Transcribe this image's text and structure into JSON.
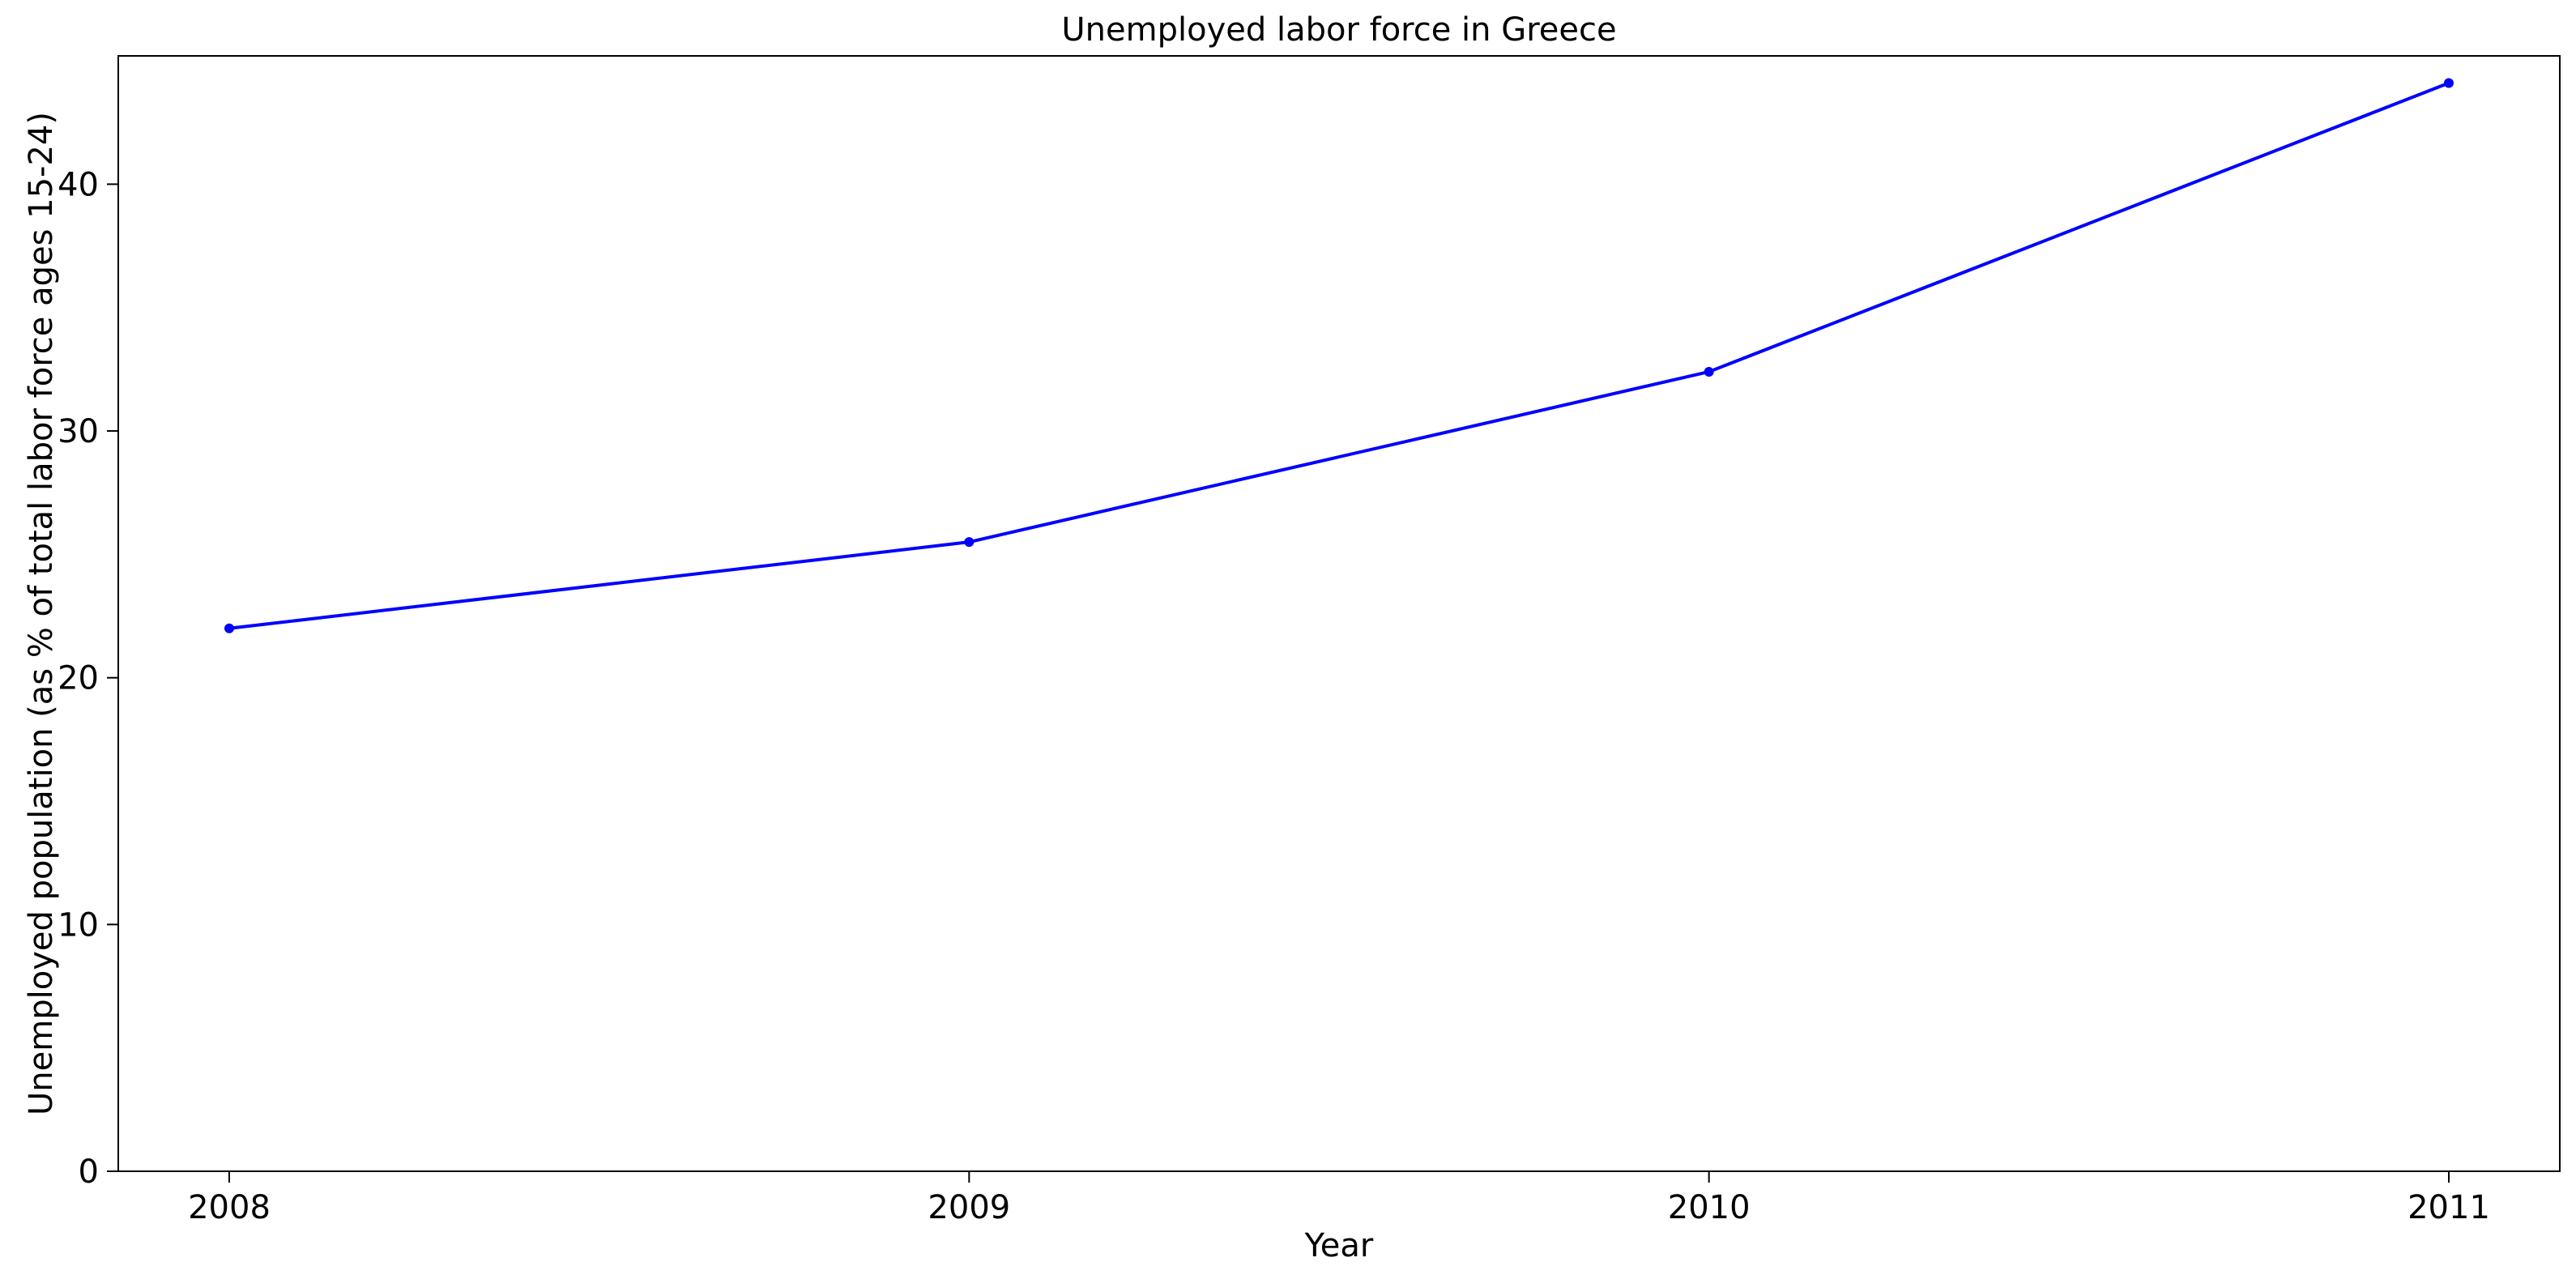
{
  "chart_data": {
    "type": "line",
    "title": "Unemployed labor force in Greece",
    "xlabel": "Year",
    "ylabel": "Unemployed population (as % of total labor force ages 15-24)",
    "x": [
      2008,
      2009,
      2010,
      2011
    ],
    "x_tick_labels": [
      "2008",
      "2009",
      "2010",
      "2011"
    ],
    "y_ticks": [
      0,
      10,
      20,
      30,
      40
    ],
    "y_tick_labels": [
      "0",
      "10",
      "20",
      "30",
      "40"
    ],
    "ylim": [
      0,
      45.2
    ],
    "xlim": [
      2007.85,
      2011.15
    ],
    "grid": false,
    "series": [
      {
        "values": [
          22.0,
          25.5,
          32.4,
          44.1
        ],
        "color": "#0000ff"
      }
    ]
  }
}
